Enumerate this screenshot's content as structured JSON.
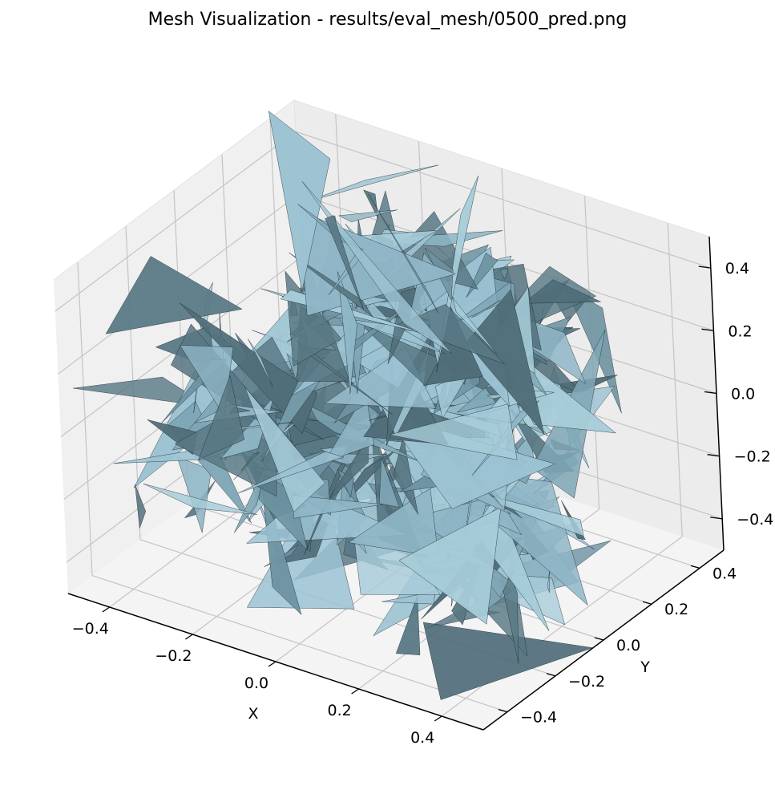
{
  "chart_data": {
    "type": "surface3d",
    "title": "Mesh Visualization - results/eval_mesh/0500_pred.png",
    "xlabel": "X",
    "ylabel": "Y",
    "zlabel": "",
    "xlim": [
      -0.5,
      0.5
    ],
    "ylim": [
      -0.5,
      0.5
    ],
    "zlim": [
      -0.5,
      0.5
    ],
    "x_ticks": [
      -0.4,
      -0.2,
      0.0,
      0.2,
      0.4
    ],
    "y_ticks": [
      -0.4,
      -0.2,
      0.0,
      0.2,
      0.4
    ],
    "z_ticks": [
      -0.4,
      -0.2,
      0.0,
      0.2,
      0.4
    ],
    "x_tick_labels": [
      "−0.4",
      "−0.2",
      "0.0",
      "0.2",
      "0.4"
    ],
    "y_tick_labels": [
      "−0.4",
      "−0.2",
      "0.0",
      "0.2",
      "0.4"
    ],
    "z_tick_labels": [
      "−0.4",
      "−0.2",
      "0.0",
      "0.2",
      "0.4"
    ],
    "grid": true,
    "colors": {
      "face_light": "#9cc3d3",
      "face_mid": "#7fa6b6",
      "face_dark": "#587884",
      "edge": "#1e2a30",
      "pane_back": "#ececec",
      "pane_side": "#f0f0f0",
      "pane_floor": "#f4f4f4",
      "grid": "#c4c4c4"
    }
  }
}
